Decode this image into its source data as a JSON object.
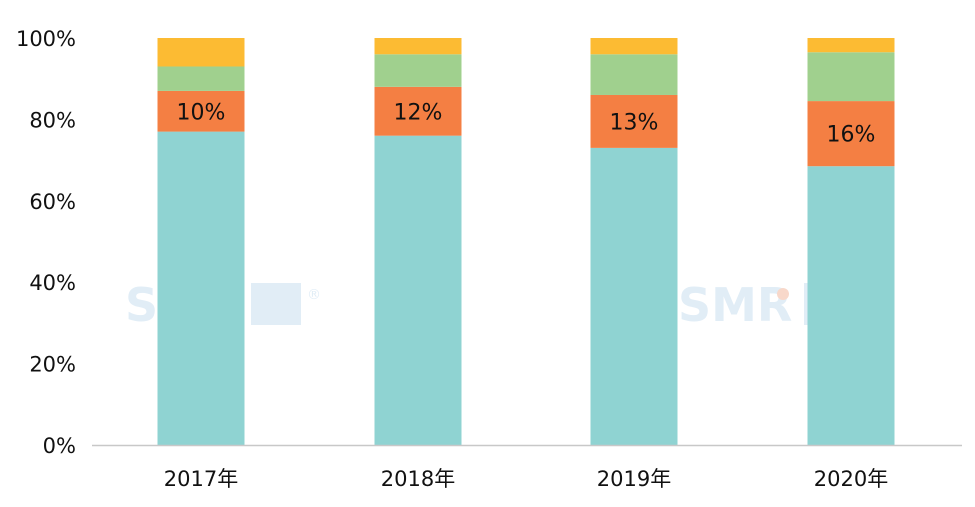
{
  "chart_data": {
    "type": "bar",
    "stacked": true,
    "categories": [
      "2017年",
      "2018年",
      "2019年",
      "2020年"
    ],
    "ylim": [
      0,
      100
    ],
    "yticks": [
      0,
      20,
      40,
      60,
      80,
      100
    ],
    "ytick_labels": [
      "0%",
      "20%",
      "40%",
      "60%",
      "80%",
      "100%"
    ],
    "grid": false,
    "legend": "none",
    "series": [
      {
        "values": [
          77,
          76,
          73,
          68.5
        ],
        "color": "#8fd3d2"
      },
      {
        "values": [
          10,
          12,
          13,
          16
        ],
        "labels": [
          "10%",
          "12%",
          "13%",
          "16%"
        ],
        "color": "#f47f43"
      },
      {
        "values": [
          6,
          8,
          10,
          12
        ],
        "color": "#a0d08e"
      },
      {
        "values": [
          7,
          4,
          4,
          3.5
        ],
        "color": "#fcbb33"
      }
    ]
  },
  "watermark": {
    "text": "SMR",
    "mark": "®"
  }
}
